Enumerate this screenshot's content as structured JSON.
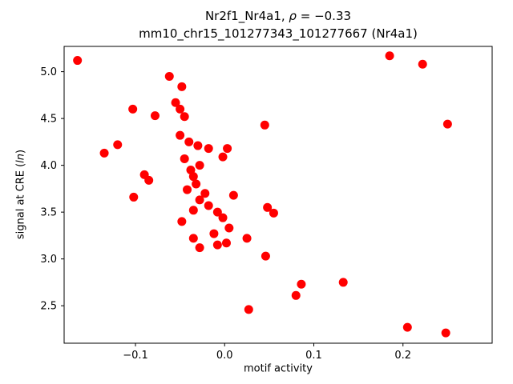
{
  "figure": {
    "title_line1_prefix": "Nr2f1_Nr4a1, ",
    "title_line1_rho": "ρ",
    "title_line1_suffix": " = −0.33",
    "title_line2": "mm10_chr15_101277343_101277667 (Nr4a1)",
    "xlabel": "motif activity",
    "ylabel_prefix": "signal at CRE (",
    "ylabel_italic": "ln",
    "ylabel_suffix": ")"
  },
  "chart_data": {
    "type": "scatter",
    "title": "Nr2f1_Nr4a1, ρ = −0.33\nmm10_chr15_101277343_101277667 (Nr4a1)",
    "xlabel": "motif activity",
    "ylabel": "signal at CRE (ln)",
    "rho": -0.33,
    "marker_color": "#ff0000",
    "axis_color": "#000000",
    "xlim": [
      -0.18,
      0.3
    ],
    "ylim": [
      2.1,
      5.27
    ],
    "xticks": [
      -0.1,
      0.0,
      0.1,
      0.2
    ],
    "yticks": [
      2.5,
      3.0,
      3.5,
      4.0,
      4.5,
      5.0
    ],
    "grid": false,
    "legend": false,
    "points": [
      [
        -0.165,
        5.12
      ],
      [
        0.185,
        5.17
      ],
      [
        0.222,
        5.08
      ],
      [
        0.25,
        4.44
      ],
      [
        -0.062,
        4.95
      ],
      [
        -0.048,
        4.84
      ],
      [
        -0.055,
        4.67
      ],
      [
        -0.05,
        4.6
      ],
      [
        -0.103,
        4.6
      ],
      [
        -0.078,
        4.53
      ],
      [
        -0.045,
        4.52
      ],
      [
        0.045,
        4.43
      ],
      [
        -0.05,
        4.32
      ],
      [
        -0.04,
        4.25
      ],
      [
        -0.03,
        4.21
      ],
      [
        -0.135,
        4.13
      ],
      [
        -0.12,
        4.22
      ],
      [
        -0.018,
        4.18
      ],
      [
        0.003,
        4.18
      ],
      [
        -0.002,
        4.09
      ],
      [
        -0.045,
        4.07
      ],
      [
        -0.028,
        4.0
      ],
      [
        -0.09,
        3.9
      ],
      [
        -0.085,
        3.84
      ],
      [
        -0.102,
        3.66
      ],
      [
        -0.038,
        3.95
      ],
      [
        -0.035,
        3.88
      ],
      [
        -0.032,
        3.8
      ],
      [
        -0.042,
        3.74
      ],
      [
        -0.022,
        3.7
      ],
      [
        -0.028,
        3.63
      ],
      [
        -0.018,
        3.57
      ],
      [
        -0.035,
        3.52
      ],
      [
        -0.048,
        3.4
      ],
      [
        0.01,
        3.68
      ],
      [
        -0.008,
        3.5
      ],
      [
        -0.002,
        3.44
      ],
      [
        0.048,
        3.55
      ],
      [
        0.055,
        3.49
      ],
      [
        0.005,
        3.33
      ],
      [
        -0.012,
        3.27
      ],
      [
        -0.035,
        3.22
      ],
      [
        -0.028,
        3.12
      ],
      [
        -0.008,
        3.15
      ],
      [
        0.002,
        3.17
      ],
      [
        0.025,
        3.22
      ],
      [
        0.046,
        3.03
      ],
      [
        0.08,
        2.61
      ],
      [
        0.086,
        2.73
      ],
      [
        0.133,
        2.75
      ],
      [
        0.027,
        2.46
      ],
      [
        0.205,
        2.27
      ],
      [
        0.248,
        2.21
      ]
    ]
  }
}
